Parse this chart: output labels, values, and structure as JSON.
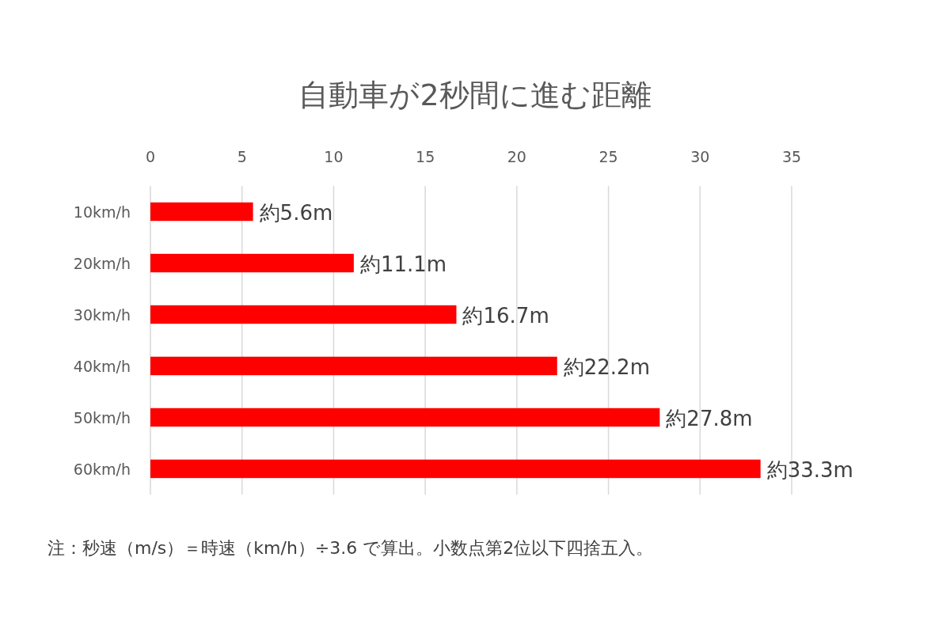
{
  "chart_data": {
    "type": "bar",
    "orientation": "horizontal",
    "title": "自動車が2秒間に進む距離",
    "categories": [
      "10km/h",
      "20km/h",
      "30km/h",
      "40km/h",
      "50km/h",
      "60km/h"
    ],
    "values": [
      5.6,
      11.1,
      16.7,
      22.2,
      27.8,
      33.3
    ],
    "value_labels": [
      "約5.6m",
      "約11.1m",
      "約16.7m",
      "約22.2m",
      "約27.8m",
      "約33.3m"
    ],
    "color": "#ff0000",
    "xlim": [
      0,
      35
    ],
    "xticks": [
      0,
      5,
      10,
      15,
      20,
      25,
      30,
      35
    ],
    "grid": "x",
    "annotations": [
      "注：秒速（m/s）＝時速（km/h）÷3.6 で算出。小数点第2位以下四捨五入。"
    ]
  }
}
